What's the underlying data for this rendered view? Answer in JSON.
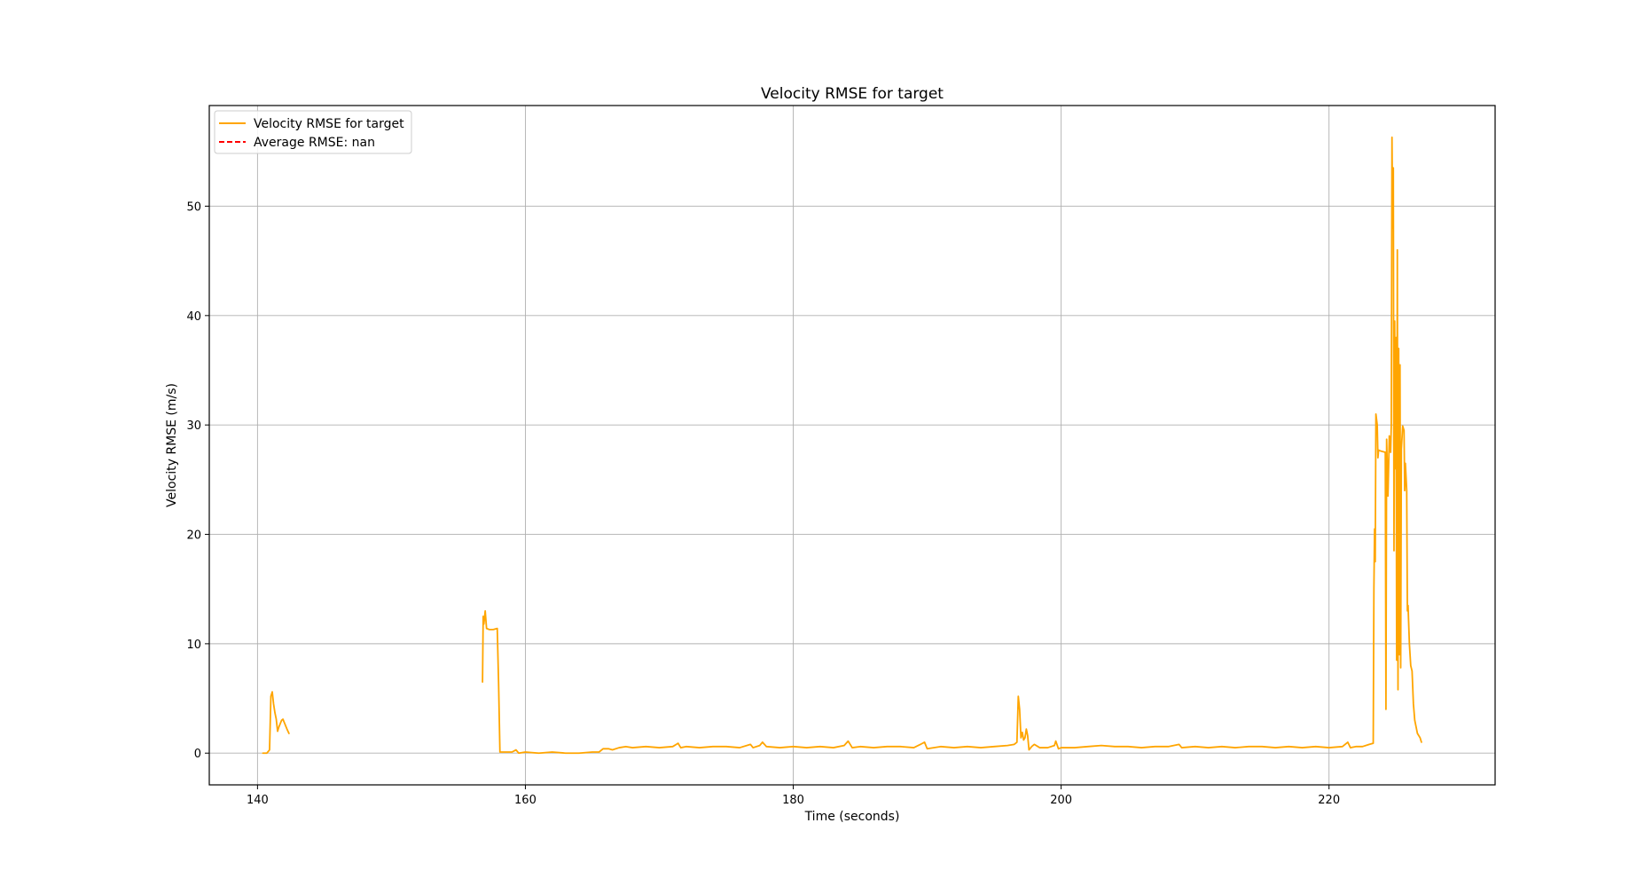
{
  "chart_data": {
    "type": "line",
    "title": "Velocity RMSE for target",
    "xlabel": "Time (seconds)",
    "ylabel": "Velocity RMSE (m/s)",
    "xlim": [
      136.4,
      232.4
    ],
    "ylim": [
      -2.9,
      59.2
    ],
    "xticks": [
      140,
      160,
      180,
      200,
      220
    ],
    "yticks": [
      0,
      10,
      20,
      30,
      40,
      50
    ],
    "grid": true,
    "legend_position": "upper left",
    "series": [
      {
        "name": "Velocity RMSE for target",
        "color": "#ffa500",
        "style": "solid",
        "segments": [
          [
            [
              140.4,
              0.0
            ],
            [
              140.7,
              0.0
            ],
            [
              140.9,
              0.3
            ],
            [
              141.0,
              5.2
            ],
            [
              141.1,
              5.6
            ],
            [
              141.2,
              4.5
            ],
            [
              141.3,
              3.7
            ],
            [
              141.4,
              3.1
            ],
            [
              141.5,
              2.0
            ],
            [
              141.6,
              2.4
            ],
            [
              141.8,
              3.0
            ],
            [
              141.9,
              3.1
            ],
            [
              142.0,
              2.8
            ],
            [
              142.1,
              2.5
            ],
            [
              142.2,
              2.2
            ],
            [
              142.35,
              1.8
            ]
          ],
          [
            [
              156.8,
              6.5
            ],
            [
              156.85,
              12.5
            ],
            [
              156.9,
              11.8
            ],
            [
              157.0,
              13.0
            ],
            [
              157.1,
              11.4
            ],
            [
              157.3,
              11.3
            ],
            [
              157.6,
              11.3
            ],
            [
              157.9,
              11.4
            ],
            [
              158.0,
              6.4
            ],
            [
              158.1,
              0.1
            ],
            [
              159.0,
              0.1
            ],
            [
              159.3,
              0.3
            ],
            [
              159.5,
              0.0
            ],
            [
              160.0,
              0.1
            ],
            [
              161.0,
              0.0
            ],
            [
              162.0,
              0.1
            ],
            [
              163.0,
              0.0
            ],
            [
              164.0,
              0.0
            ],
            [
              165.0,
              0.1
            ],
            [
              165.5,
              0.1
            ],
            [
              165.8,
              0.4
            ],
            [
              166.2,
              0.4
            ],
            [
              166.5,
              0.3
            ],
            [
              167.0,
              0.5
            ],
            [
              167.5,
              0.6
            ],
            [
              168.0,
              0.5
            ],
            [
              169.0,
              0.6
            ],
            [
              170.0,
              0.5
            ],
            [
              171.0,
              0.6
            ],
            [
              171.4,
              0.9
            ],
            [
              171.6,
              0.5
            ],
            [
              172.0,
              0.6
            ],
            [
              173.0,
              0.5
            ],
            [
              174.0,
              0.6
            ],
            [
              175.0,
              0.6
            ],
            [
              176.0,
              0.5
            ],
            [
              176.8,
              0.8
            ],
            [
              177.0,
              0.5
            ],
            [
              177.5,
              0.7
            ],
            [
              177.7,
              1.0
            ],
            [
              178.0,
              0.6
            ],
            [
              179.0,
              0.5
            ],
            [
              180.0,
              0.6
            ],
            [
              181.0,
              0.5
            ],
            [
              182.0,
              0.6
            ],
            [
              183.0,
              0.5
            ],
            [
              183.8,
              0.7
            ],
            [
              184.1,
              1.1
            ],
            [
              184.4,
              0.5
            ],
            [
              185.0,
              0.6
            ],
            [
              186.0,
              0.5
            ],
            [
              187.0,
              0.6
            ],
            [
              188.0,
              0.6
            ],
            [
              189.0,
              0.5
            ],
            [
              189.5,
              0.8
            ],
            [
              189.8,
              1.0
            ],
            [
              190.0,
              0.4
            ],
            [
              191.0,
              0.6
            ],
            [
              192.0,
              0.5
            ],
            [
              193.0,
              0.6
            ],
            [
              194.0,
              0.5
            ],
            [
              195.0,
              0.6
            ],
            [
              196.0,
              0.7
            ],
            [
              196.5,
              0.8
            ],
            [
              196.7,
              1.0
            ],
            [
              196.8,
              5.2
            ],
            [
              196.9,
              4.0
            ],
            [
              197.0,
              1.4
            ],
            [
              197.1,
              1.9
            ],
            [
              197.2,
              1.2
            ],
            [
              197.3,
              1.4
            ],
            [
              197.4,
              2.2
            ],
            [
              197.5,
              1.6
            ],
            [
              197.6,
              0.3
            ],
            [
              197.8,
              0.6
            ],
            [
              198.0,
              0.8
            ],
            [
              198.4,
              0.5
            ],
            [
              199.0,
              0.5
            ],
            [
              199.5,
              0.7
            ],
            [
              199.6,
              1.1
            ],
            [
              199.8,
              0.4
            ],
            [
              200.0,
              0.5
            ],
            [
              201.0,
              0.5
            ],
            [
              202.0,
              0.6
            ],
            [
              203.0,
              0.7
            ],
            [
              204.0,
              0.6
            ],
            [
              205.0,
              0.6
            ],
            [
              206.0,
              0.5
            ],
            [
              207.0,
              0.6
            ],
            [
              208.0,
              0.6
            ],
            [
              208.8,
              0.8
            ],
            [
              209.0,
              0.5
            ],
            [
              210.0,
              0.6
            ],
            [
              211.0,
              0.5
            ],
            [
              212.0,
              0.6
            ],
            [
              213.0,
              0.5
            ],
            [
              214.0,
              0.6
            ],
            [
              215.0,
              0.6
            ],
            [
              216.0,
              0.5
            ],
            [
              217.0,
              0.6
            ],
            [
              218.0,
              0.5
            ],
            [
              219.0,
              0.6
            ],
            [
              220.0,
              0.5
            ],
            [
              221.0,
              0.6
            ],
            [
              221.4,
              1.0
            ],
            [
              221.6,
              0.5
            ],
            [
              222.0,
              0.6
            ],
            [
              222.5,
              0.6
            ],
            [
              223.0,
              0.8
            ],
            [
              223.3,
              0.9
            ],
            [
              223.35,
              15.0
            ],
            [
              223.4,
              20.5
            ],
            [
              223.45,
              17.5
            ],
            [
              223.5,
              31.0
            ],
            [
              223.6,
              30.0
            ],
            [
              223.65,
              27.0
            ],
            [
              223.7,
              27.7
            ],
            [
              223.9,
              27.6
            ],
            [
              224.2,
              27.5
            ],
            [
              224.25,
              4.0
            ],
            [
              224.3,
              28.7
            ],
            [
              224.4,
              23.5
            ],
            [
              224.5,
              29.0
            ],
            [
              224.6,
              27.5
            ],
            [
              224.65,
              30.0
            ],
            [
              224.7,
              56.3
            ],
            [
              224.75,
              48.0
            ],
            [
              224.8,
              53.5
            ],
            [
              224.85,
              18.5
            ],
            [
              224.9,
              39.5
            ],
            [
              224.95,
              26.0
            ],
            [
              225.0,
              38.0
            ],
            [
              225.05,
              8.5
            ],
            [
              225.1,
              46.0
            ],
            [
              225.15,
              5.8
            ],
            [
              225.2,
              37.0
            ],
            [
              225.25,
              9.0
            ],
            [
              225.3,
              35.5
            ],
            [
              225.35,
              7.8
            ],
            [
              225.4,
              27.8
            ],
            [
              225.5,
              29.9
            ],
            [
              225.6,
              29.5
            ],
            [
              225.65,
              24.0
            ],
            [
              225.7,
              26.5
            ],
            [
              225.8,
              24.0
            ],
            [
              225.85,
              13.0
            ],
            [
              225.9,
              13.5
            ],
            [
              226.0,
              10.0
            ],
            [
              226.1,
              8.0
            ],
            [
              226.2,
              7.5
            ],
            [
              226.3,
              4.5
            ],
            [
              226.4,
              3.0
            ],
            [
              226.6,
              1.8
            ],
            [
              226.8,
              1.4
            ],
            [
              226.9,
              1.0
            ]
          ]
        ]
      },
      {
        "name": "Average RMSE: nan",
        "color": "#ff0000",
        "style": "dashed",
        "segments": []
      }
    ]
  }
}
